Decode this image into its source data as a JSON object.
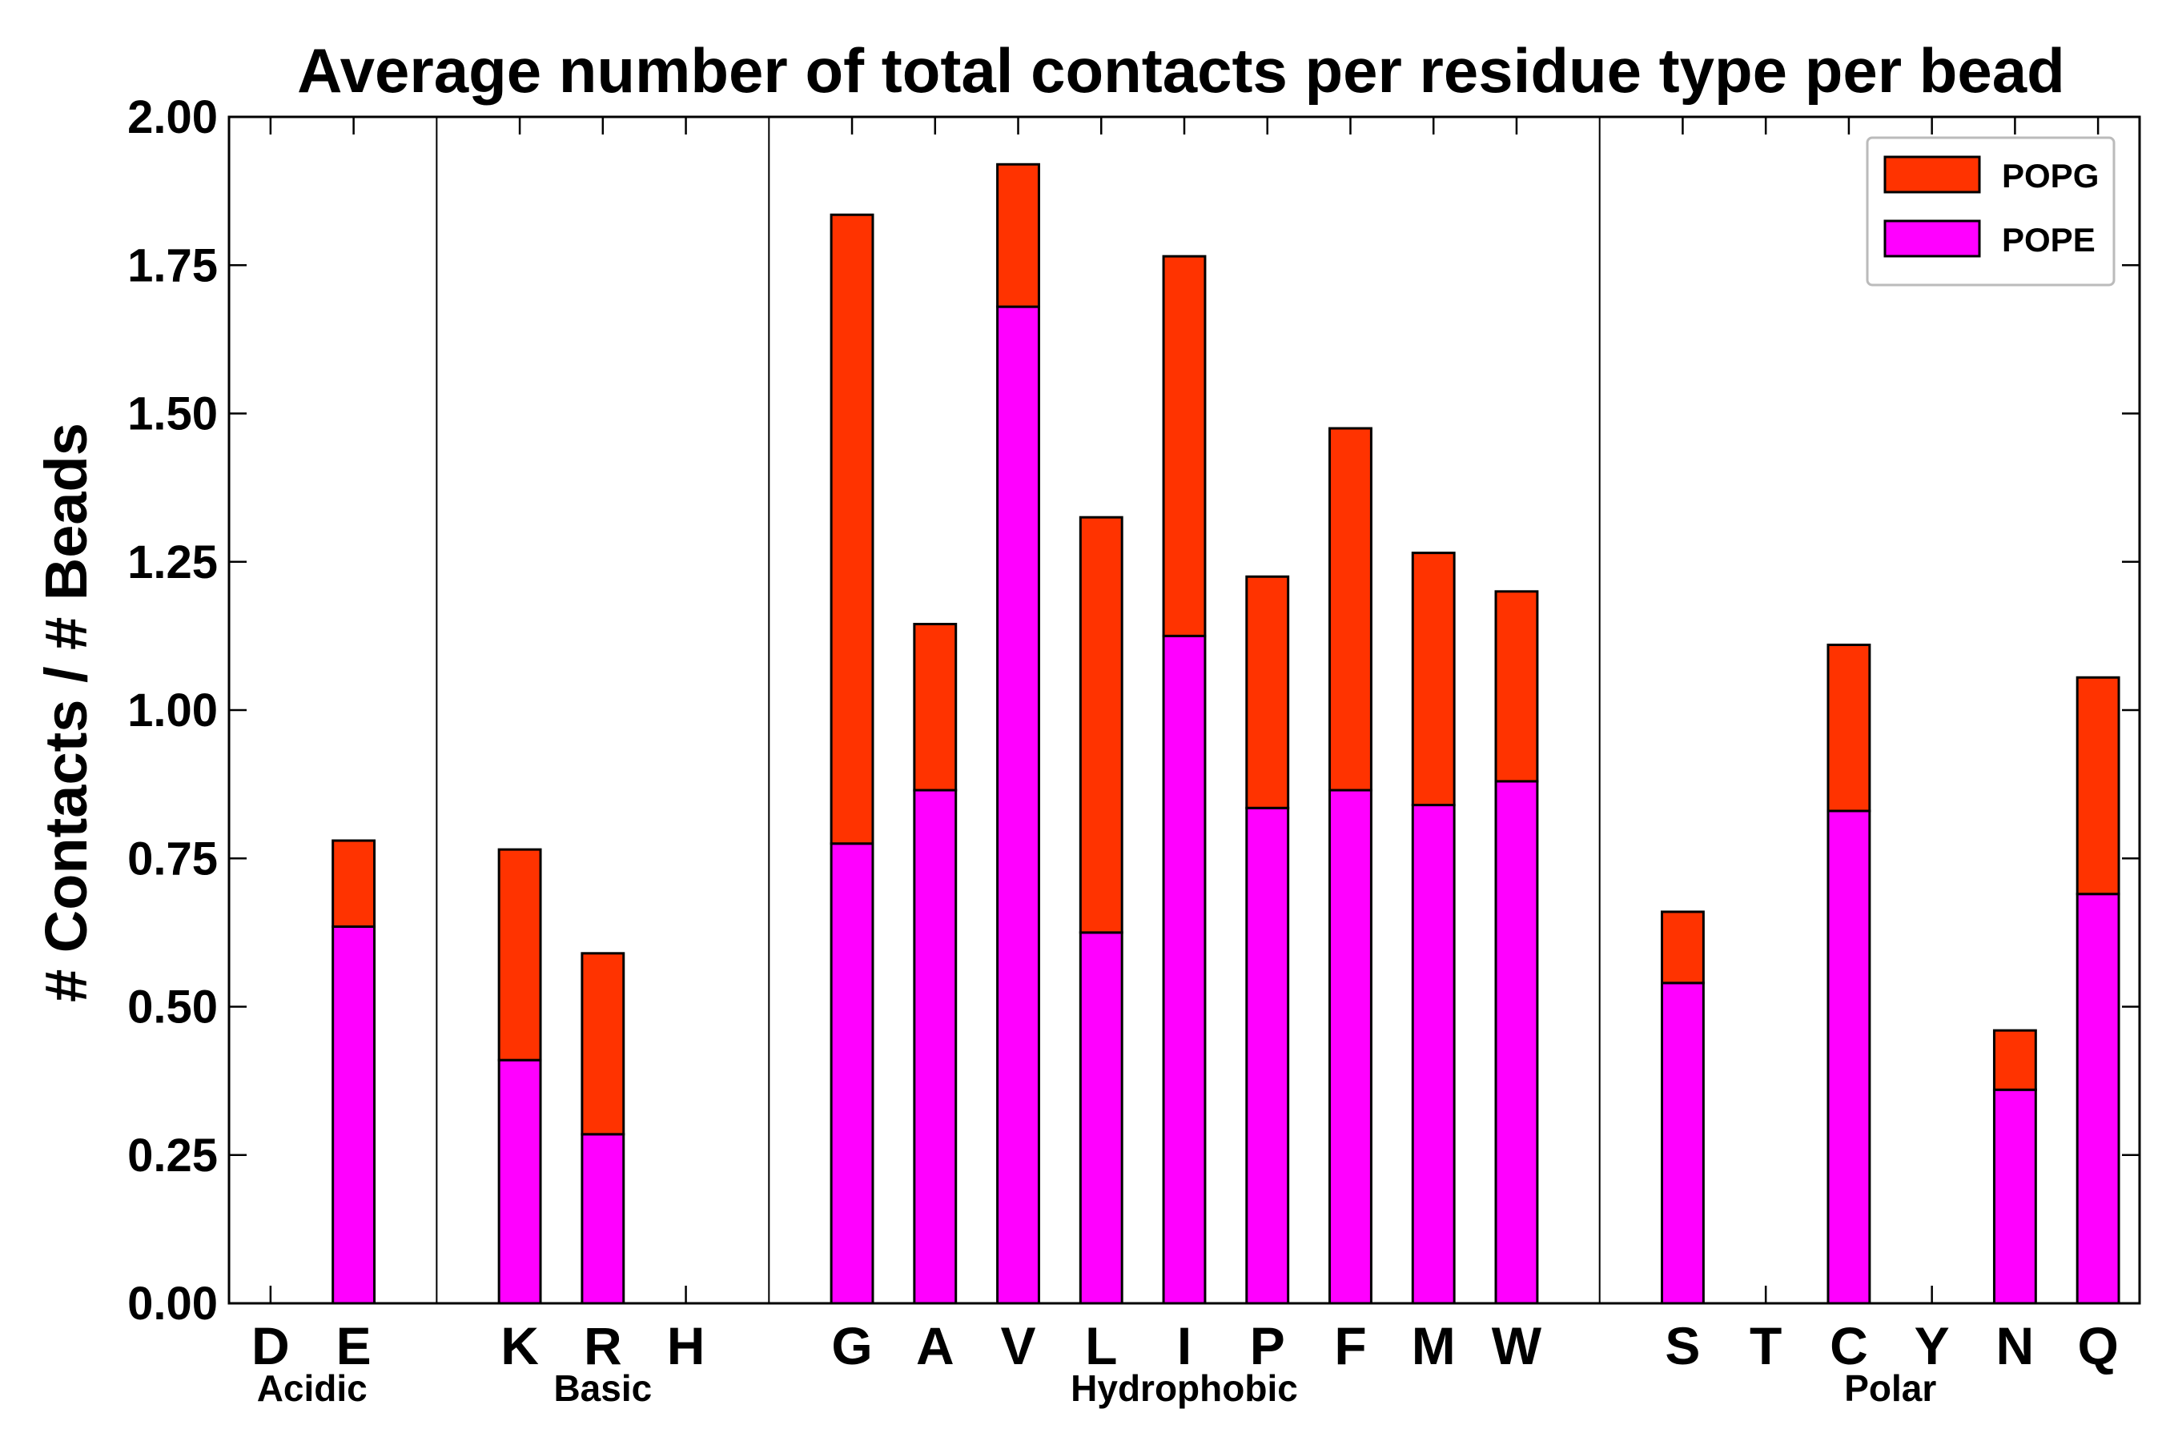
{
  "chart_data": {
    "type": "bar",
    "stacked": true,
    "title": "Average number of total contacts per residue type per bead",
    "xlabel": "",
    "ylabel": "# Contacts / # Beads",
    "ylim": [
      0,
      2.0
    ],
    "yticks": [
      "0.00",
      "0.25",
      "0.50",
      "0.75",
      "1.00",
      "1.25",
      "1.50",
      "1.75",
      "2.00"
    ],
    "grid": false,
    "legend_position": "top-right",
    "slots": [
      "D",
      "E",
      "",
      "K",
      "R",
      "H",
      "",
      "G",
      "A",
      "V",
      "L",
      "I",
      "P",
      "F",
      "M",
      "W",
      "",
      "S",
      "T",
      "C",
      "Y",
      "N",
      "Q"
    ],
    "categories": [
      "D",
      "E",
      "K",
      "R",
      "H",
      "G",
      "A",
      "V",
      "L",
      "I",
      "P",
      "F",
      "M",
      "W",
      "S",
      "T",
      "C",
      "Y",
      "N",
      "Q"
    ],
    "groups": [
      {
        "name": "Acidic",
        "start": 0,
        "end": 1
      },
      {
        "name": "Basic",
        "start": 3,
        "end": 5
      },
      {
        "name": "Hydrophobic",
        "start": 7,
        "end": 15
      },
      {
        "name": "Polar",
        "start": 17,
        "end": 22
      }
    ],
    "series": [
      {
        "name": "POPE",
        "color": "#ff00ff",
        "values": [
          0.0,
          0.635,
          0.41,
          0.285,
          0.0,
          0.775,
          0.865,
          1.68,
          0.625,
          1.125,
          0.835,
          0.865,
          0.84,
          0.88,
          0.54,
          0.0,
          0.83,
          0.0,
          0.36,
          0.69
        ]
      },
      {
        "name": "POPG",
        "color": "#ff3300",
        "values": [
          0.0,
          0.145,
          0.355,
          0.305,
          0.0,
          1.06,
          0.28,
          0.24,
          0.7,
          0.64,
          0.39,
          0.61,
          0.425,
          0.32,
          0.12,
          0.0,
          0.28,
          0.0,
          0.1,
          0.365
        ]
      }
    ],
    "legend": [
      {
        "label": "POPG",
        "color": "#ff3300"
      },
      {
        "label": "POPE",
        "color": "#ff00ff"
      }
    ]
  }
}
